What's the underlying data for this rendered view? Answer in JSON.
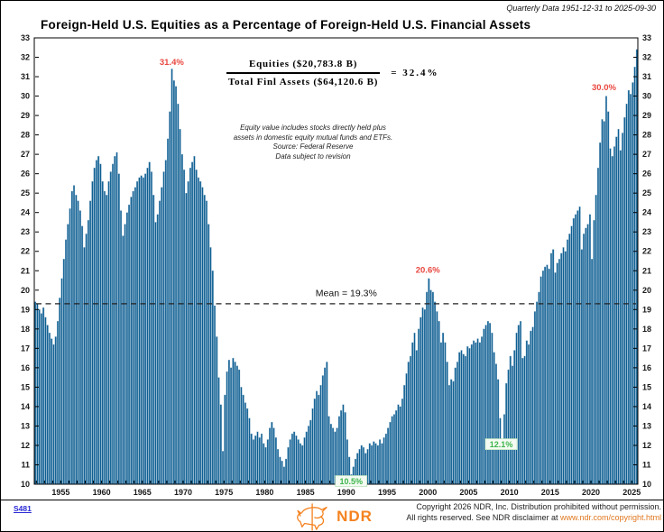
{
  "header": {
    "period_label": "Quarterly Data 1951-12-31 to 2025-09-30",
    "title": "Foreign-Held U.S. Equities as a Percentage of Foreign-Held U.S. Financial Assets"
  },
  "formula": {
    "numerator": "Equities ($20,783.8 B)",
    "denominator": "Total Finl Assets ($64,120.6 B)",
    "equals": "=",
    "result": "32.4%"
  },
  "notes": [
    "Equity value includes stocks directly held plus",
    "assets in domestic equity mutual funds and ETFs.",
    "Source: Federal Reserve",
    "Data subject to revision"
  ],
  "footer": {
    "chart_id": "S481",
    "logo_text": "NDR",
    "copyright_line1": "Copyright 2026 NDR, Inc. Distribution prohibited without permission.",
    "copyright_line2_prefix": "All rights reserved. See NDR disclaimer at ",
    "copyright_link": "www.ndr.com/copyright.html"
  },
  "colors": {
    "bar": "#0e5f92",
    "bar_highlight": "#7fa9c7",
    "annotation_red": "#e8473f",
    "annotation_green": "#3cb54b",
    "green_box_fill": "#f4fbf2",
    "green_box_border": "#bfe3bf",
    "mean_line": "#222222",
    "link_blue": "#2929d6",
    "logo_orange": "#f5821f",
    "link_orange": "#e07820"
  },
  "chart_data": {
    "type": "bar",
    "title": "Foreign-Held U.S. Equities as a Percentage of Foreign-Held U.S. Financial Assets",
    "frequency": "quarterly",
    "start_quarter": "1951-Q4",
    "end_quarter": "2025-Q3",
    "start_year_decimal": 1951.75,
    "end_year_decimal": 2025.75,
    "ylim": [
      10,
      33
    ],
    "y_tick_step": 1,
    "x_tick_years": [
      1955,
      1960,
      1965,
      1970,
      1975,
      1980,
      1985,
      1990,
      1995,
      2000,
      2005,
      2010,
      2015,
      2020,
      2025
    ],
    "grid": false,
    "mean": 19.3,
    "mean_label": "Mean = 19.3%",
    "mean_label_year": 1990.0,
    "mean_label_value": 19.6,
    "annotations": [
      {
        "text": "31.4%",
        "year": 1968.6,
        "value": 31.6,
        "style": "red"
      },
      {
        "text": "20.6%",
        "year": 2000.0,
        "value": 20.9,
        "style": "red"
      },
      {
        "text": "30.0%",
        "year": 2021.6,
        "value": 30.3,
        "style": "red"
      },
      {
        "text": "10.5%",
        "year": 1990.6,
        "value": 10.0,
        "style": "green-box"
      },
      {
        "text": "12.1%",
        "year": 2009.0,
        "value": 11.9,
        "style": "green-box"
      }
    ],
    "series_name": "Foreign-held U.S. equities as % of foreign-held U.S. financial assets",
    "values": [
      19.4,
      19.3,
      19.0,
      18.8,
      19.1,
      18.6,
      18.2,
      17.8,
      17.5,
      17.2,
      17.6,
      18.4,
      19.6,
      20.6,
      21.6,
      22.6,
      23.4,
      24.2,
      25.1,
      25.4,
      24.9,
      24.6,
      24.1,
      23.3,
      22.2,
      22.9,
      23.6,
      24.6,
      25.6,
      26.3,
      26.7,
      26.9,
      26.5,
      25.6,
      25.1,
      24.9,
      25.6,
      26.1,
      26.5,
      26.9,
      27.1,
      26.0,
      24.1,
      22.8,
      23.4,
      24.0,
      24.4,
      24.8,
      25.1,
      25.3,
      25.6,
      25.8,
      25.9,
      25.8,
      26.0,
      26.3,
      26.6,
      26.1,
      24.9,
      23.5,
      23.9,
      24.6,
      25.3,
      26.1,
      26.7,
      27.8,
      29.2,
      31.4,
      30.8,
      30.5,
      29.6,
      28.3,
      27.0,
      26.2,
      25.0,
      25.6,
      26.3,
      26.6,
      26.9,
      26.2,
      25.8,
      25.6,
      25.3,
      24.9,
      24.6,
      23.4,
      22.2,
      21.0,
      19.2,
      17.6,
      15.5,
      14.1,
      11.7,
      14.6,
      15.8,
      16.4,
      16.0,
      16.5,
      16.3,
      16.1,
      15.9,
      15.0,
      14.6,
      14.2,
      13.9,
      13.4,
      12.6,
      12.3,
      12.5,
      12.7,
      12.4,
      12.6,
      12.1,
      11.9,
      12.3,
      12.9,
      13.2,
      12.9,
      12.4,
      11.8,
      11.4,
      11.2,
      10.9,
      11.3,
      11.9,
      12.3,
      12.6,
      12.7,
      12.5,
      12.3,
      12.1,
      12.0,
      12.4,
      12.7,
      13.0,
      13.3,
      13.9,
      14.4,
      14.8,
      14.6,
      15.1,
      15.6,
      16.0,
      16.3,
      13.5,
      13.1,
      12.9,
      12.7,
      12.9,
      13.5,
      13.8,
      14.1,
      13.7,
      12.3,
      11.4,
      10.5,
      10.9,
      11.3,
      11.6,
      11.8,
      12.0,
      11.9,
      11.6,
      11.8,
      12.1,
      12.0,
      12.2,
      12.1,
      12.0,
      12.3,
      12.1,
      12.4,
      12.6,
      12.9,
      13.2,
      13.5,
      13.6,
      13.8,
      14.1,
      14.0,
      14.4,
      15.1,
      15.7,
      16.3,
      16.6,
      17.3,
      17.8,
      16.9,
      18.0,
      18.6,
      19.1,
      19.0,
      19.9,
      20.6,
      20.0,
      19.9,
      19.4,
      18.9,
      18.4,
      17.3,
      17.8,
      17.3,
      16.3,
      15.1,
      15.4,
      15.3,
      16.0,
      16.3,
      16.8,
      16.9,
      16.7,
      16.6,
      17.1,
      17.0,
      17.2,
      17.4,
      17.3,
      17.5,
      17.3,
      17.6,
      18.0,
      18.2,
      18.4,
      18.3,
      17.8,
      16.8,
      16.2,
      15.4,
      13.4,
      12.1,
      13.6,
      15.2,
      15.9,
      16.6,
      16.1,
      16.9,
      17.8,
      18.2,
      18.4,
      16.5,
      16.6,
      17.4,
      17.2,
      17.9,
      18.1,
      18.9,
      19.4,
      19.9,
      20.7,
      21.0,
      21.2,
      21.3,
      21.1,
      21.9,
      22.1,
      20.9,
      21.4,
      21.6,
      21.9,
      22.2,
      22.0,
      22.6,
      22.9,
      23.3,
      23.7,
      23.9,
      24.1,
      24.3,
      22.1,
      22.9,
      23.2,
      23.4,
      23.9,
      21.6,
      23.6,
      24.9,
      26.3,
      27.6,
      28.8,
      28.7,
      30.0,
      29.2,
      27.3,
      26.9,
      27.4,
      27.9,
      28.3,
      27.2,
      28.1,
      28.9,
      29.6,
      30.3,
      30.1,
      30.7,
      31.5,
      32.4
    ]
  }
}
